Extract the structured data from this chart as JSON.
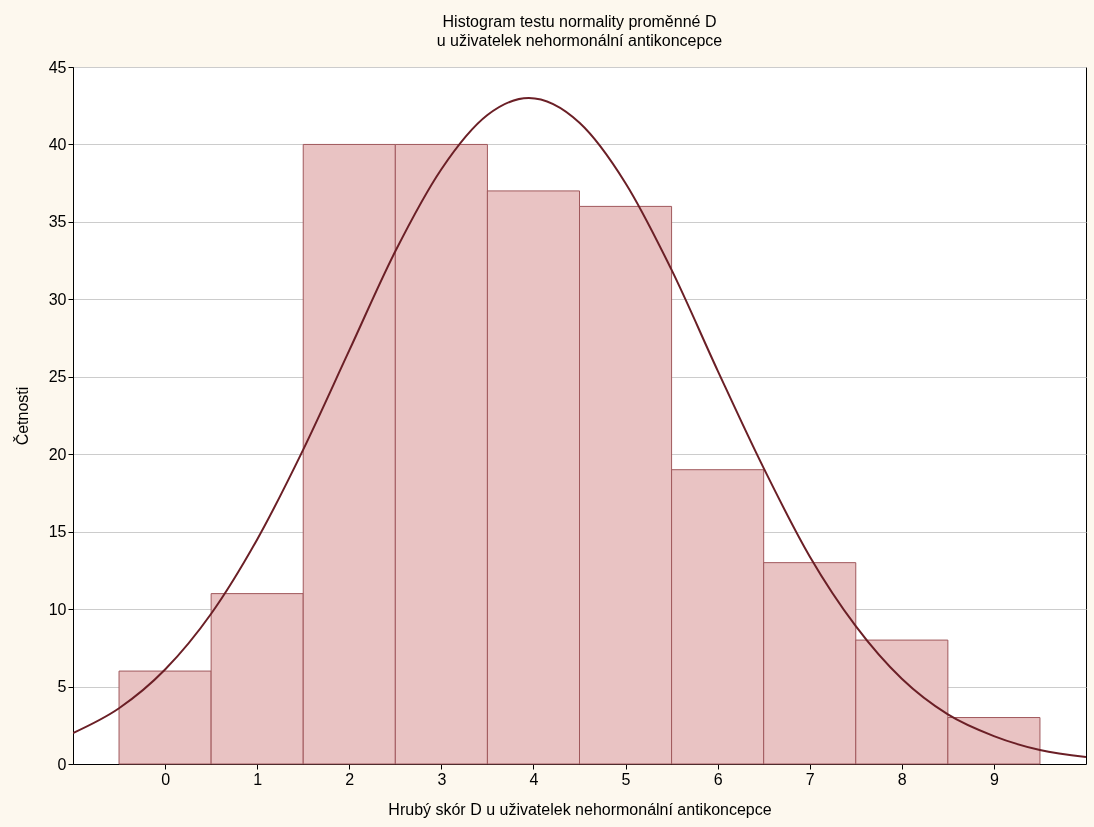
{
  "chart_data": {
    "type": "histogram",
    "title": "Histogram testu normality proměnné D",
    "subtitle": "u uživatelek nehormonální antikoncepce",
    "xlabel": "Hrubý skór D u uživatelek nehormonální antikoncepce",
    "ylabel": "Četnosti",
    "bins": [
      -0.5,
      0.5,
      1.5,
      2.5,
      3.5,
      4.5,
      5.5,
      6.5,
      7.5,
      8.5,
      9.5
    ],
    "series": [
      {
        "color": "#e9c3c3",
        "values": [
          6,
          11,
          40,
          40,
          37,
          36,
          19,
          13,
          8,
          3
        ]
      },
      {
        "type": "line",
        "color": "#6b1f26",
        "x": [
          -1,
          -0.5,
          0,
          0.5,
          1,
          1.5,
          2,
          2.5,
          3,
          3.5,
          3.95,
          4.5,
          5,
          5.5,
          6,
          6.5,
          7,
          7.5,
          8,
          8.5,
          9,
          9.5,
          10
        ],
        "values": [
          2.0,
          3.6,
          6.1,
          9.7,
          14.5,
          20.3,
          26.7,
          33.1,
          38.4,
          41.9,
          43,
          41.4,
          37.5,
          31.9,
          25.4,
          19.1,
          13.4,
          8.9,
          5.5,
          3.2,
          1.8,
          0.9,
          0.45
        ]
      }
    ],
    "xlim": [
      -1,
      10
    ],
    "xticks": [
      0,
      1,
      2,
      3,
      4,
      5,
      6,
      7,
      8,
      9
    ],
    "ylim": [
      0,
      45
    ],
    "yticks": [
      0,
      5,
      10,
      15,
      20,
      25,
      30,
      35,
      40,
      45
    ],
    "grid": "y",
    "line_style": "solid",
    "marker": "none"
  }
}
